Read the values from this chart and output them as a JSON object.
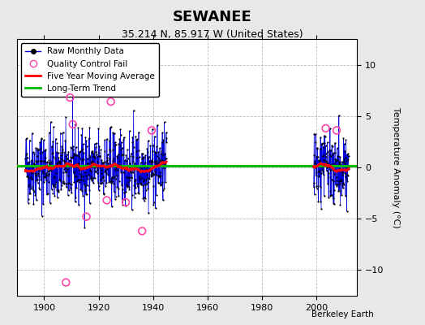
{
  "title": "SEWANEE",
  "subtitle": "35.214 N, 85.917 W (United States)",
  "ylabel": "Temperature Anomaly (°C)",
  "xlabel_credit": "Berkeley Earth",
  "ylim": [
    -12.5,
    12.5
  ],
  "xlim": [
    1890,
    2015
  ],
  "yticks": [
    -10,
    -5,
    0,
    5,
    10
  ],
  "xticks": [
    1900,
    1920,
    1940,
    1960,
    1980,
    2000
  ],
  "data_segment1_start": 1893.0,
  "data_segment1_end": 1945.0,
  "data_segment2_start": 1999.0,
  "data_segment2_end": 2012.0,
  "random_seed": 42,
  "bg_color": "#e8e8e8",
  "plot_bg_color": "#ffffff",
  "line_color_blue": "#0000dd",
  "dot_color": "#000000",
  "qc_color": "#ff44aa",
  "moving_avg_color": "#ff0000",
  "trend_color": "#00bb00",
  "trend_value": 0.12,
  "grid_color": "#aaaaaa",
  "grid_style": "--",
  "title_fontsize": 13,
  "subtitle_fontsize": 9,
  "legend_fontsize": 7.5,
  "tick_fontsize": 8,
  "ylabel_fontsize": 8,
  "noise_std": 1.8,
  "qc1_times": [
    1908.0,
    1909.5,
    1910.5,
    1915.5,
    1923.0,
    1924.5,
    1930.0,
    1936.0,
    1939.5
  ],
  "qc1_values": [
    -11.2,
    6.8,
    4.2,
    -4.8,
    -3.2,
    6.4,
    -3.4,
    -6.2,
    3.6
  ],
  "qc2_times": [
    2003.5,
    2007.5
  ],
  "qc2_values": [
    3.8,
    3.6
  ]
}
